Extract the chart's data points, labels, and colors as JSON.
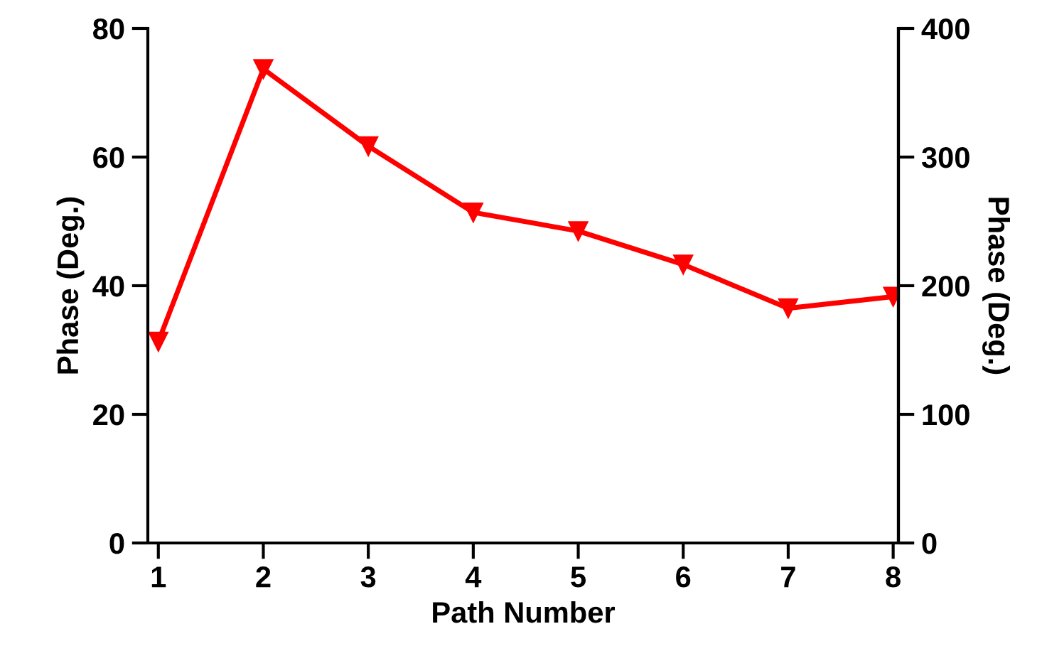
{
  "chart_data": {
    "type": "line",
    "xlabel": "Path Number",
    "ylabel": "Phase (Deg.)",
    "y2label": "Phase (Deg.)",
    "x": [
      1,
      2,
      3,
      4,
      5,
      6,
      7,
      8
    ],
    "series": [
      {
        "color": "#ff0000",
        "values": [
          31.3,
          73.7,
          61.7,
          51.4,
          48.5,
          43.3,
          36.5,
          38.3
        ]
      }
    ],
    "xlim": [
      0.9,
      8.05
    ],
    "xticks": [
      1,
      2,
      3,
      4,
      5,
      6,
      7,
      8
    ],
    "ylim": [
      0,
      80
    ],
    "yticks": [
      0,
      20,
      40,
      60,
      80
    ],
    "y2lim": [
      0,
      400
    ],
    "y2ticks": [
      0,
      100,
      200,
      300,
      400
    ],
    "marker": "triangle",
    "line_style": "solid",
    "grid": false,
    "legend": false
  }
}
